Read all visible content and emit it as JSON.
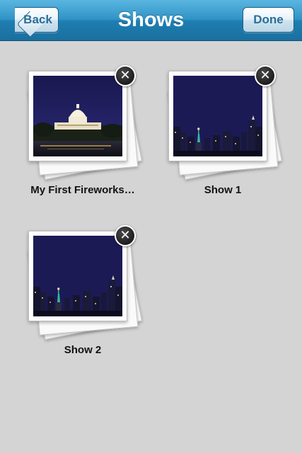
{
  "nav": {
    "title": "Shows",
    "back_label": "Back",
    "done_label": "Done"
  },
  "shows": [
    {
      "label": "My First Fireworks…",
      "thumbnail": "capitol-building-night",
      "delete_glyph": "✕"
    },
    {
      "label": "Show 1",
      "thumbnail": "statue-of-liberty-skyline-night",
      "delete_glyph": "✕"
    },
    {
      "label": "Show 2",
      "thumbnail": "statue-of-liberty-skyline-night",
      "delete_glyph": "✕"
    }
  ],
  "colors": {
    "navbar": "#2f93c6",
    "background": "#d4d4d4",
    "night_sky": "#1c1a55"
  }
}
